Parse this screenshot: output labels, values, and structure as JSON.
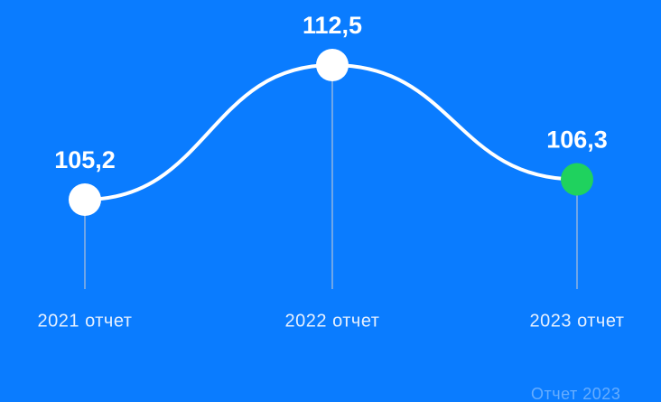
{
  "chart_data": {
    "type": "line",
    "categories": [
      "2021 отчет",
      "2022 отчет",
      "2023 отчет"
    ],
    "series": [
      {
        "color": "#ffffff",
        "values": [
          105.2,
          112.5,
          106.3
        ],
        "value_labels": [
          "105,2",
          "112,5",
          "106,3"
        ],
        "marker_colors": [
          "#ffffff",
          "#ffffff",
          "#1fd25e"
        ]
      }
    ],
    "annotation": "Отчет 2023"
  }
}
